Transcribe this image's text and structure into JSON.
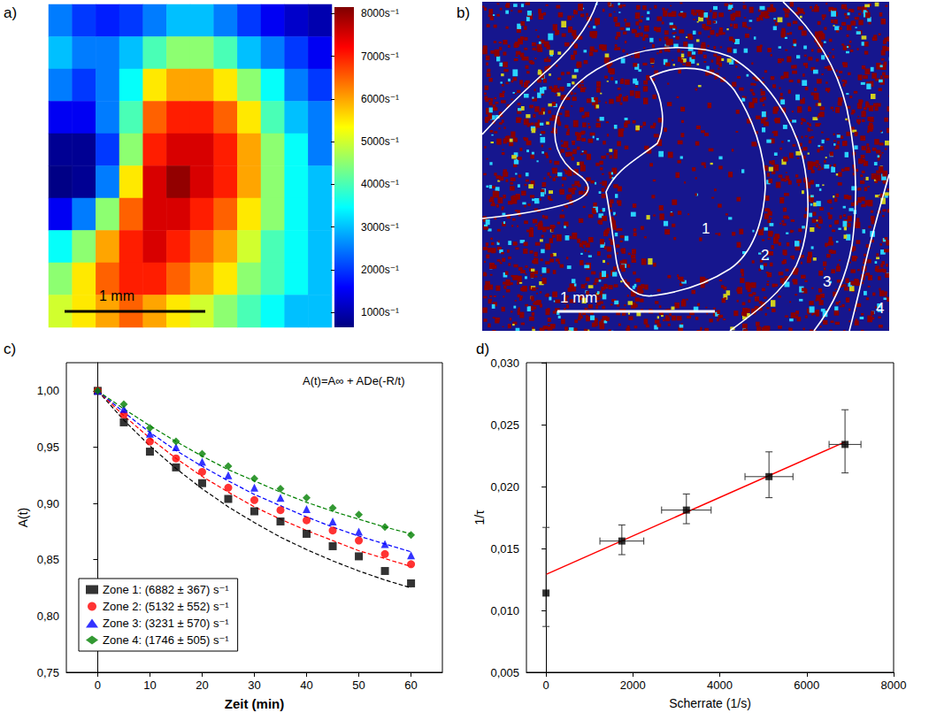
{
  "chart_data": [
    {
      "type": "heatmap",
      "panel_label": "a)",
      "tick_labels": false,
      "cells": [
        [
          2500,
          2000,
          1800,
          2000,
          2500,
          3000,
          3000,
          2500,
          2000,
          1500,
          1200,
          1000
        ],
        [
          3000,
          2500,
          2500,
          3000,
          4000,
          4500,
          4500,
          4000,
          3000,
          2500,
          2000,
          1500
        ],
        [
          2500,
          2000,
          2500,
          3500,
          5500,
          6000,
          6000,
          5500,
          4500,
          3500,
          2500,
          2000
        ],
        [
          1500,
          1500,
          2500,
          4000,
          6500,
          7000,
          7000,
          6500,
          5500,
          4000,
          3000,
          2500
        ],
        [
          800,
          800,
          2000,
          4500,
          7000,
          7500,
          7500,
          7000,
          6000,
          4500,
          3500,
          2500
        ],
        [
          700,
          800,
          2500,
          5500,
          7500,
          8000,
          7500,
          7000,
          6000,
          4500,
          3500,
          3000
        ],
        [
          1500,
          2500,
          4500,
          6500,
          7500,
          7500,
          7000,
          6500,
          5500,
          4500,
          3500,
          3000
        ],
        [
          3500,
          4500,
          6000,
          7000,
          7500,
          7000,
          6500,
          6000,
          5000,
          4000,
          3500,
          3000
        ],
        [
          4500,
          5500,
          6500,
          7000,
          7000,
          6500,
          6000,
          5500,
          4500,
          4000,
          3500,
          3000
        ],
        [
          5000,
          5500,
          6000,
          6500,
          6000,
          5500,
          5000,
          4500,
          4000,
          3500,
          3000,
          3000
        ]
      ],
      "colorbar_range": [
        650,
        8150
      ],
      "colorbar_ticks": [
        {
          "value": 1000,
          "label": "1000s⁻¹"
        },
        {
          "value": 2000,
          "label": "2000s⁻¹"
        },
        {
          "value": 3000,
          "label": "3000s⁻¹"
        },
        {
          "value": 4000,
          "label": "4000s⁻¹"
        },
        {
          "value": 5000,
          "label": "5000s⁻¹"
        },
        {
          "value": 6000,
          "label": "6000s⁻¹"
        },
        {
          "value": 7000,
          "label": "7000s⁻¹"
        },
        {
          "value": 8000,
          "label": "8000s⁻¹"
        }
      ],
      "scale_bar": "1 mm"
    },
    {
      "type": "image",
      "panel_label": "b)",
      "zone_labels": [
        "1",
        "2",
        "3",
        "4"
      ],
      "scale_bar": "1 mm"
    },
    {
      "type": "scatter",
      "panel_label": "c)",
      "xlabel": "Zeit (min)",
      "ylabel": "A(t)",
      "annotation": "A(t)=A∞ + ADe(-R/t)",
      "x": [
        0,
        5,
        10,
        15,
        20,
        25,
        30,
        35,
        40,
        45,
        50,
        55,
        60
      ],
      "series": [
        {
          "name": "Zone 1: (6882 ± 367) s⁻¹",
          "color": "#000000",
          "marker": "square",
          "values": [
            1.0,
            0.972,
            0.946,
            0.932,
            0.918,
            0.904,
            0.893,
            0.884,
            0.873,
            0.862,
            0.853,
            0.84,
            0.829
          ],
          "fit": [
            1.0,
            0.974,
            0.951,
            0.931,
            0.913,
            0.897,
            0.883,
            0.87,
            0.859,
            0.849,
            0.84,
            0.832,
            0.825
          ]
        },
        {
          "name": "Zone 2: (5132 ± 552) s⁻¹",
          "color": "#ff0000",
          "marker": "circle",
          "values": [
            1.0,
            0.979,
            0.955,
            0.94,
            0.928,
            0.914,
            0.903,
            0.894,
            0.885,
            0.876,
            0.867,
            0.855,
            0.846
          ],
          "fit": [
            1.0,
            0.978,
            0.958,
            0.94,
            0.924,
            0.91,
            0.897,
            0.886,
            0.876,
            0.867,
            0.858,
            0.851,
            0.844
          ]
        },
        {
          "name": "Zone 3: (3231 ± 570) s⁻¹",
          "color": "#0000ff",
          "marker": "triangle",
          "values": [
            1.0,
            0.984,
            0.962,
            0.95,
            0.937,
            0.925,
            0.914,
            0.905,
            0.895,
            0.884,
            0.875,
            0.864,
            0.854
          ],
          "fit": [
            1.0,
            0.981,
            0.963,
            0.947,
            0.933,
            0.92,
            0.908,
            0.898,
            0.888,
            0.879,
            0.871,
            0.864,
            0.857
          ]
        },
        {
          "name": "Zone 4: (1746 ± 505) s⁻¹",
          "color": "#008000",
          "marker": "diamond",
          "values": [
            1.0,
            0.988,
            0.967,
            0.955,
            0.944,
            0.933,
            0.922,
            0.913,
            0.905,
            0.896,
            0.89,
            0.879,
            0.872
          ],
          "fit": [
            1.0,
            0.984,
            0.969,
            0.955,
            0.942,
            0.93,
            0.92,
            0.91,
            0.901,
            0.893,
            0.886,
            0.879,
            0.873
          ]
        }
      ],
      "line_style": "dashed",
      "xlim": [
        -6,
        66
      ],
      "xticks": [
        0,
        10,
        20,
        30,
        40,
        50,
        60
      ],
      "ylim": [
        0.75,
        1.025
      ],
      "yticks": [
        {
          "value": 0.75,
          "label": "0,75"
        },
        {
          "value": 0.8,
          "label": "0,80"
        },
        {
          "value": 0.85,
          "label": "0,85"
        },
        {
          "value": 0.9,
          "label": "0,90"
        },
        {
          "value": 0.95,
          "label": "0,95"
        },
        {
          "value": 1.0,
          "label": "1,00"
        }
      ],
      "legend": "lower left",
      "grid": false
    },
    {
      "type": "scatter",
      "panel_label": "d)",
      "xlabel": "Scherrate (1/s)",
      "ylabel": "1/τ",
      "x": [
        0,
        1746,
        3231,
        5132,
        6882
      ],
      "values": [
        0.0114,
        0.0156,
        0.0181,
        0.0208,
        0.0234
      ],
      "xerr": [
        0,
        505,
        570,
        552,
        367
      ],
      "y_low": [
        0.0087,
        0.0145,
        0.017,
        0.0191,
        0.0211
      ],
      "y_high": [
        0.0167,
        0.0169,
        0.0194,
        0.0228,
        0.0262
      ],
      "color": "#000000",
      "marker": "square",
      "fit": {
        "x": [
          0,
          6882
        ],
        "values": [
          0.0129,
          0.0236
        ],
        "color": "#ff0000"
      },
      "xlim": [
        -450,
        8000
      ],
      "xticks": [
        0,
        2000,
        4000,
        6000,
        8000
      ],
      "ylim": [
        0.005,
        0.03
      ],
      "yticks": [
        {
          "value": 0.005,
          "label": "0,005"
        },
        {
          "value": 0.01,
          "label": "0,010"
        },
        {
          "value": 0.015,
          "label": "0,015"
        },
        {
          "value": 0.02,
          "label": "0,020"
        },
        {
          "value": 0.025,
          "label": "0,025"
        },
        {
          "value": 0.03,
          "label": "0,030"
        }
      ],
      "grid": false
    }
  ]
}
